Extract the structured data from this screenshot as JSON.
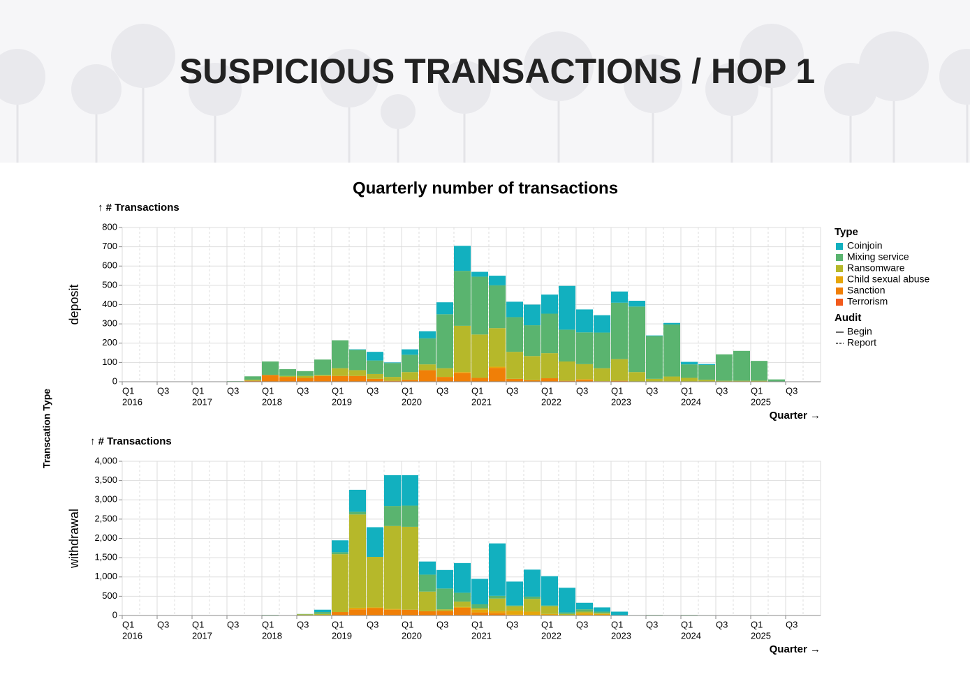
{
  "header": {
    "title": "SUSPICIOUS TRANSACTIONS / HOP 1"
  },
  "chart_data": {
    "type": "bar",
    "stacked": true,
    "title": "Quarterly number of transactions",
    "x_label": "Quarter →",
    "facet_label": "Transcation Type",
    "grid": true,
    "legend_title": "Type",
    "categories": [
      [
        "Q1",
        "2016"
      ],
      null,
      [
        "Q3"
      ],
      null,
      [
        "Q1",
        "2017"
      ],
      null,
      [
        "Q3"
      ],
      null,
      [
        "Q1",
        "2018"
      ],
      null,
      [
        "Q3"
      ],
      null,
      [
        "Q1",
        "2019"
      ],
      null,
      [
        "Q3"
      ],
      null,
      [
        "Q1",
        "2020"
      ],
      null,
      [
        "Q3"
      ],
      null,
      [
        "Q1",
        "2021"
      ],
      null,
      [
        "Q3"
      ],
      null,
      [
        "Q1",
        "2022"
      ],
      null,
      [
        "Q3"
      ],
      null,
      [
        "Q1",
        "2023"
      ],
      null,
      [
        "Q3"
      ],
      null,
      [
        "Q1",
        "2024"
      ],
      null,
      [
        "Q3"
      ],
      null,
      [
        "Q1",
        "2025"
      ],
      null,
      [
        "Q3"
      ],
      null
    ],
    "series": [
      {
        "name": "Coinjoin",
        "color": "#12b0bf"
      },
      {
        "name": "Mixing service",
        "color": "#5ab46f"
      },
      {
        "name": "Ransomware",
        "color": "#b6b82a"
      },
      {
        "name": "Child sexual abuse",
        "color": "#e6a60a"
      },
      {
        "name": "Sanction",
        "color": "#f07f07"
      },
      {
        "name": "Terrorism",
        "color": "#f25a1c"
      }
    ],
    "audit": {
      "title": "Audit",
      "entries": [
        "Begin",
        "Report"
      ]
    },
    "panels": [
      {
        "name": "deposit",
        "y_label": "↑ # Transactions",
        "ylim": [
          0,
          800
        ],
        "yticks": [
          0,
          100,
          200,
          300,
          400,
          500,
          600,
          700,
          800
        ],
        "values": [
          [
            0,
            0,
            0,
            0,
            0,
            0,
            0,
            0,
            0,
            0,
            0,
            0,
            0,
            3,
            45,
            3,
            28,
            37,
            62,
            130,
            25,
            50,
            80,
            107,
            99,
            227,
            119,
            90,
            58,
            30,
            3,
            8,
            13,
            5,
            0,
            0,
            0,
            0,
            0,
            0
          ],
          [
            0,
            0,
            0,
            0,
            0,
            0,
            3,
            18,
            70,
            35,
            25,
            80,
            145,
            105,
            70,
            72,
            90,
            135,
            280,
            285,
            300,
            222,
            180,
            160,
            205,
            165,
            165,
            185,
            293,
            340,
            222,
            270,
            70,
            77,
            137,
            155,
            103,
            12,
            0,
            0
          ],
          [
            0,
            0,
            0,
            0,
            0,
            0,
            0,
            5,
            0,
            5,
            10,
            5,
            40,
            30,
            25,
            20,
            40,
            30,
            45,
            240,
            225,
            200,
            140,
            125,
            130,
            100,
            78,
            67,
            112,
            50,
            15,
            25,
            20,
            10,
            5,
            5,
            5,
            0,
            0,
            0
          ],
          [
            0,
            0,
            0,
            0,
            0,
            0,
            0,
            0,
            0,
            0,
            0,
            0,
            0,
            0,
            0,
            0,
            0,
            0,
            0,
            5,
            0,
            6,
            0,
            0,
            0,
            0,
            3,
            0,
            0,
            0,
            0,
            2,
            0,
            0,
            0,
            0,
            0,
            0,
            0,
            0
          ],
          [
            0,
            0,
            0,
            0,
            0,
            0,
            0,
            5,
            35,
            25,
            20,
            30,
            30,
            30,
            15,
            5,
            10,
            60,
            25,
            45,
            20,
            72,
            15,
            8,
            18,
            5,
            10,
            3,
            5,
            0,
            0,
            0,
            0,
            0,
            0,
            0,
            0,
            0,
            0,
            0
          ],
          [
            0,
            0,
            0,
            0,
            0,
            0,
            0,
            0,
            0,
            0,
            0,
            0,
            0,
            0,
            0,
            0,
            0,
            0,
            0,
            0,
            0,
            0,
            0,
            0,
            0,
            0,
            0,
            0,
            0,
            0,
            0,
            0,
            0,
            0,
            0,
            0,
            0,
            0,
            0,
            0
          ]
        ]
      },
      {
        "name": "withdrawal",
        "y_label": "↑ # Transactions",
        "ylim": [
          0,
          4000
        ],
        "yticks": [
          0,
          500,
          {
            "value": 1000,
            "label": "1,000"
          },
          {
            "value": 1500,
            "label": "1,500"
          },
          {
            "value": 2000,
            "label": "2,000"
          },
          {
            "value": 2500,
            "label": "2,500"
          },
          {
            "value": 3000,
            "label": "3,000"
          },
          {
            "value": 3500,
            "label": "3,500"
          },
          {
            "value": 4000,
            "label": "4,000"
          }
        ],
        "values": [
          [
            0,
            0,
            0,
            0,
            0,
            0,
            0,
            0,
            0,
            0,
            0,
            60,
            310,
            570,
            770,
            800,
            790,
            340,
            480,
            770,
            660,
            1360,
            620,
            700,
            760,
            640,
            170,
            110,
            90,
            0,
            0,
            0,
            0,
            0,
            0,
            0,
            0,
            0,
            0,
            0
          ],
          [
            0,
            0,
            0,
            0,
            0,
            0,
            0,
            0,
            15,
            0,
            10,
            50,
            50,
            70,
            0,
            520,
            550,
            440,
            540,
            230,
            100,
            70,
            20,
            60,
            20,
            40,
            60,
            40,
            0,
            10,
            15,
            10,
            15,
            10,
            0,
            5,
            10,
            0,
            0,
            0
          ],
          [
            0,
            0,
            0,
            0,
            0,
            0,
            0,
            0,
            0,
            0,
            30,
            40,
            1500,
            2420,
            1310,
            2150,
            2150,
            510,
            40,
            140,
            40,
            330,
            120,
            330,
            200,
            40,
            40,
            20,
            10,
            0,
            0,
            0,
            0,
            0,
            0,
            0,
            0,
            0,
            0,
            0
          ],
          [
            0,
            0,
            0,
            0,
            0,
            0,
            0,
            0,
            0,
            0,
            0,
            0,
            0,
            40,
            20,
            20,
            0,
            0,
            0,
            20,
            70,
            50,
            100,
            90,
            40,
            0,
            60,
            40,
            0,
            0,
            0,
            0,
            0,
            0,
            0,
            0,
            0,
            0,
            0,
            0
          ],
          [
            0,
            0,
            0,
            0,
            0,
            0,
            0,
            0,
            0,
            0,
            0,
            0,
            90,
            160,
            190,
            150,
            150,
            110,
            120,
            200,
            80,
            60,
            20,
            10,
            0,
            0,
            0,
            0,
            0,
            0,
            0,
            0,
            0,
            0,
            0,
            0,
            0,
            0,
            0,
            0
          ],
          [
            0,
            0,
            0,
            0,
            0,
            0,
            0,
            0,
            0,
            0,
            0,
            0,
            0,
            0,
            0,
            0,
            0,
            0,
            0,
            0,
            0,
            0,
            0,
            0,
            0,
            0,
            0,
            0,
            0,
            0,
            0,
            0,
            0,
            0,
            0,
            0,
            0,
            0,
            0,
            0
          ]
        ]
      }
    ]
  }
}
